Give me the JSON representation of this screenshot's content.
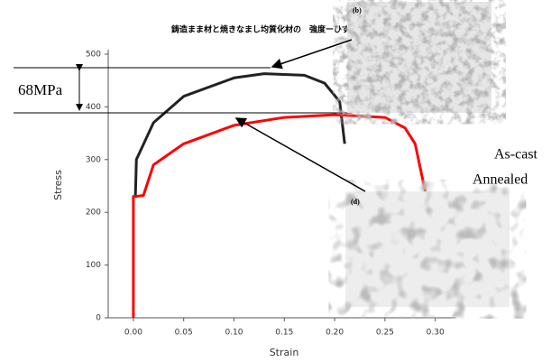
{
  "chart_data": {
    "type": "line",
    "title": "鋳造まま材と焼きなまし均質化材の　強度ーひずみ曲線",
    "x_label": "Strain",
    "y_label": "Stress",
    "xlim": [
      -0.025,
      0.32
    ],
    "ylim": [
      0,
      500
    ],
    "xticks": [
      {
        "value": 0,
        "label": "0.00"
      },
      {
        "value": 0.05,
        "label": "0.05"
      },
      {
        "value": 0.1,
        "label": "0.10"
      },
      {
        "value": 0.15,
        "label": "0.15"
      },
      {
        "value": 0.2,
        "label": "0.20"
      },
      {
        "value": 0.25,
        "label": "0.25"
      },
      {
        "value": 0.3,
        "label": "0.30"
      }
    ],
    "yticks": [
      0,
      100,
      200,
      300,
      400,
      500
    ],
    "series": [
      {
        "color": "#ff0000",
        "x": [
          0,
          0,
          0.002,
          0.01,
          0.02,
          0.05,
          0.1,
          0.15,
          0.2,
          0.25,
          0.27,
          0.28,
          0.29
        ],
        "values": [
          0,
          230,
          230,
          232,
          290,
          330,
          365,
          380,
          385,
          380,
          360,
          330,
          240
        ]
      },
      {
        "color": "#222222",
        "x": [
          0.002,
          0.003,
          0.02,
          0.05,
          0.1,
          0.13,
          0.17,
          0.19,
          0.205,
          0.21
        ],
        "values": [
          230,
          300,
          370,
          420,
          455,
          463,
          460,
          445,
          410,
          330
        ]
      }
    ],
    "annotations": {
      "difference": "68MPa",
      "as_cast": "As-cast",
      "annealed": "Annealed"
    },
    "images": [
      {
        "label": "(b)"
      },
      {
        "label": "(d)"
      }
    ]
  }
}
